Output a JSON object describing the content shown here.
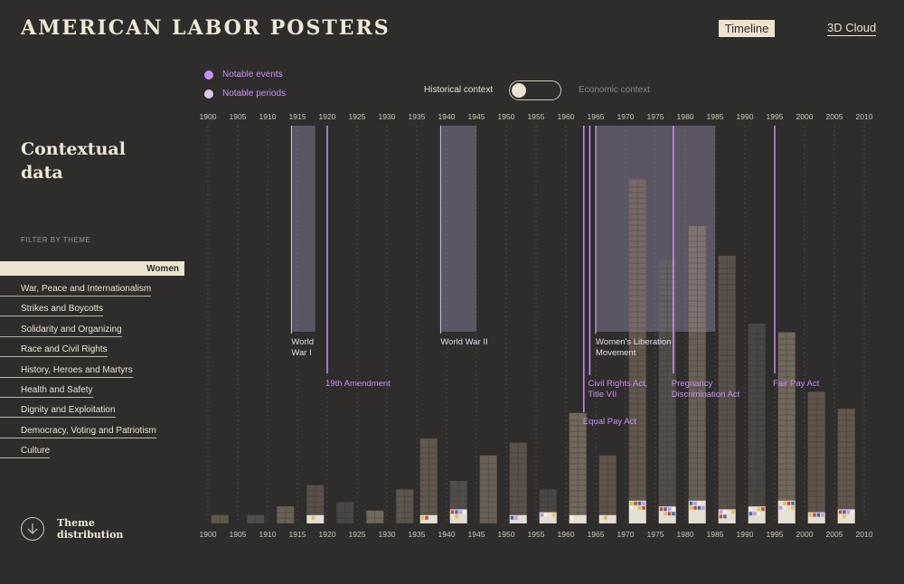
{
  "header": {
    "title": "AMERICAN LABOR POSTERS",
    "nav": {
      "timeline": "Timeline",
      "cloud": "3D Cloud"
    }
  },
  "legend": {
    "events": "Notable events",
    "periods": "Notable periods"
  },
  "context_toggle": {
    "left": "Historical context",
    "right": "Economic context",
    "active": "Historical context"
  },
  "sidebar": {
    "title_line1": "Contextual",
    "title_line2": "data",
    "filter_label": "FILTER BY THEME",
    "active_theme": "Women",
    "themes": [
      "War, Peace and Internationalism",
      "Strikes and Boycotts",
      "Solidarity and Organizing",
      "Race and Civil Rights",
      "History, Heroes and Martyrs",
      "Health and Safety",
      "Dignity and Exploitation",
      "Democracy, Voting and Patriotism",
      "Culture"
    ],
    "theme_distribution_line1": "Theme",
    "theme_distribution_line2": "distribution"
  },
  "colors": {
    "background": "#2e2d2c",
    "cream": "#ece3cf",
    "event": "#c990f2",
    "period": "rgba(132,118,145,0.55)"
  },
  "chart_data": {
    "type": "bar",
    "x_ticks": [
      1900,
      1905,
      1910,
      1915,
      1920,
      1925,
      1930,
      1935,
      1940,
      1945,
      1950,
      1955,
      1960,
      1965,
      1970,
      1975,
      1980,
      1985,
      1990,
      1995,
      2000,
      2005,
      2010
    ],
    "xlim": [
      1900,
      2010
    ],
    "periods": [
      {
        "label_lines": [
          "World",
          "War I"
        ],
        "start": 1914,
        "end": 1918
      },
      {
        "label_lines": [
          "World War II"
        ],
        "start": 1939,
        "end": 1945
      },
      {
        "label_lines": [
          "Women's Liberation",
          "Movement"
        ],
        "start": 1965,
        "end": 1985
      }
    ],
    "events": [
      {
        "label_lines": [
          "19th Amendment"
        ],
        "year": 1920
      },
      {
        "label_lines": [
          "Equal Pay Act"
        ],
        "year": 1963
      },
      {
        "label_lines": [
          "Civil Rights Act,",
          "Title VII"
        ],
        "year": 1964
      },
      {
        "label_lines": [
          "Pregnancy",
          "Discrimination Act"
        ],
        "year": 1978
      },
      {
        "label_lines": [
          "Fair Pay Act"
        ],
        "year": 1995
      }
    ],
    "posters_per_year_bins": [
      {
        "year": 1902,
        "count": 2
      },
      {
        "year": 1908,
        "count": 2
      },
      {
        "year": 1913,
        "count": 4
      },
      {
        "year": 1918,
        "count": 9
      },
      {
        "year": 1923,
        "count": 5
      },
      {
        "year": 1928,
        "count": 3
      },
      {
        "year": 1933,
        "count": 8
      },
      {
        "year": 1937,
        "count": 20
      },
      {
        "year": 1942,
        "count": 10
      },
      {
        "year": 1947,
        "count": 16
      },
      {
        "year": 1952,
        "count": 19
      },
      {
        "year": 1957,
        "count": 8
      },
      {
        "year": 1962,
        "count": 26
      },
      {
        "year": 1967,
        "count": 16
      },
      {
        "year": 1972,
        "count": 81
      },
      {
        "year": 1977,
        "count": 62
      },
      {
        "year": 1982,
        "count": 70
      },
      {
        "year": 1987,
        "count": 63
      },
      {
        "year": 1992,
        "count": 47
      },
      {
        "year": 1997,
        "count": 45
      },
      {
        "year": 2002,
        "count": 31
      },
      {
        "year": 2007,
        "count": 27
      }
    ],
    "women_theme_per_bin": [
      {
        "year": 1918,
        "count": 1
      },
      {
        "year": 1937,
        "count": 1
      },
      {
        "year": 1942,
        "count": 3
      },
      {
        "year": 1952,
        "count": 1
      },
      {
        "year": 1957,
        "count": 2
      },
      {
        "year": 1962,
        "count": 1
      },
      {
        "year": 1967,
        "count": 1
      },
      {
        "year": 1972,
        "count": 6
      },
      {
        "year": 1977,
        "count": 4
      },
      {
        "year": 1982,
        "count": 6
      },
      {
        "year": 1987,
        "count": 3
      },
      {
        "year": 1992,
        "count": 4
      },
      {
        "year": 1997,
        "count": 8
      },
      {
        "year": 2002,
        "count": 2
      },
      {
        "year": 2007,
        "count": 3
      }
    ]
  }
}
